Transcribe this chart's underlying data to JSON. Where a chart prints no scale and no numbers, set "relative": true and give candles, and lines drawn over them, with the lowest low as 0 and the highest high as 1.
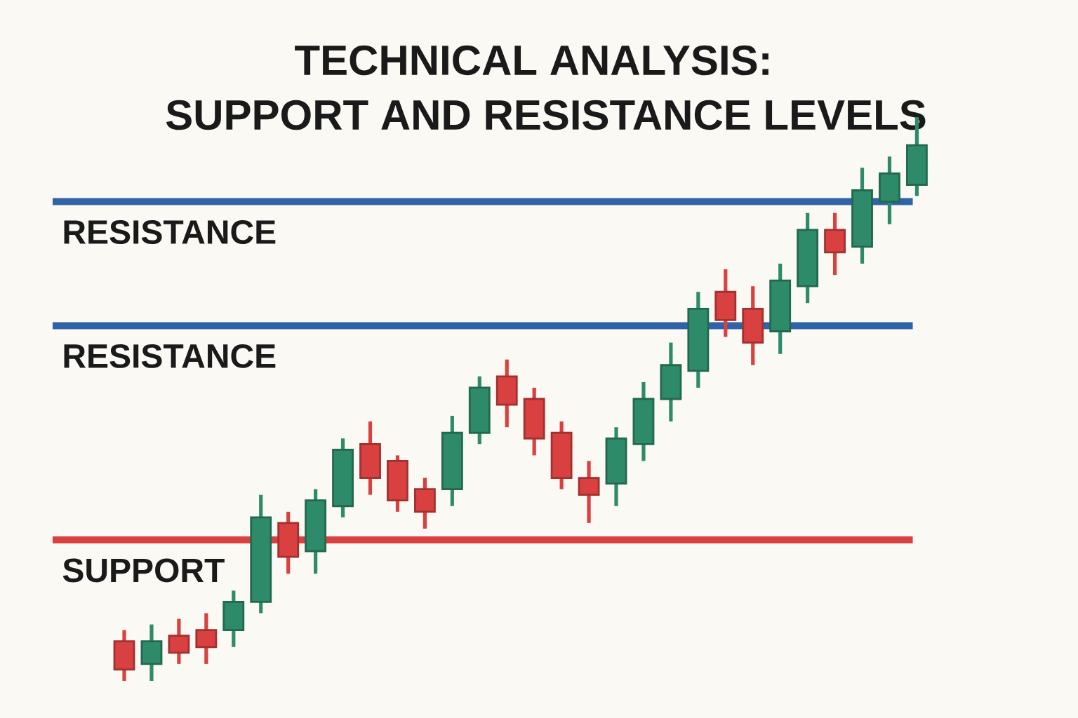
{
  "chart_data": {
    "type": "candlestick",
    "title": "TECHNICAL ANALYSIS:",
    "subtitle": "SUPPORT AND RESISTANCE LEVELS",
    "relative": true,
    "categories": [
      null,
      null,
      null,
      null,
      null,
      null,
      null,
      null,
      null,
      null,
      null,
      null,
      null,
      null,
      null,
      null,
      null,
      null,
      null,
      null,
      null,
      null,
      null,
      null,
      null,
      null,
      null,
      null,
      null,
      null
    ],
    "ohlc": [
      [
        0.07,
        0.09,
        0.0,
        0.02
      ],
      [
        0.03,
        0.1,
        0.0,
        0.07
      ],
      [
        0.08,
        0.11,
        0.03,
        0.05
      ],
      [
        0.09,
        0.12,
        0.03,
        0.06
      ],
      [
        0.09,
        0.16,
        0.06,
        0.14
      ],
      [
        0.14,
        0.33,
        0.12,
        0.29
      ],
      [
        0.28,
        0.3,
        0.19,
        0.22
      ],
      [
        0.23,
        0.34,
        0.19,
        0.32
      ],
      [
        0.31,
        0.43,
        0.29,
        0.41
      ],
      [
        0.42,
        0.46,
        0.33,
        0.36
      ],
      [
        0.39,
        0.4,
        0.3,
        0.32
      ],
      [
        0.34,
        0.36,
        0.27,
        0.3
      ],
      [
        0.34,
        0.47,
        0.31,
        0.44
      ],
      [
        0.44,
        0.54,
        0.42,
        0.52
      ],
      [
        0.54,
        0.57,
        0.45,
        0.49
      ],
      [
        0.5,
        0.52,
        0.4,
        0.43
      ],
      [
        0.44,
        0.46,
        0.34,
        0.36
      ],
      [
        0.36,
        0.39,
        0.28,
        0.33
      ],
      [
        0.35,
        0.45,
        0.31,
        0.43
      ],
      [
        0.42,
        0.53,
        0.39,
        0.5
      ],
      [
        0.5,
        0.6,
        0.46,
        0.56
      ],
      [
        0.55,
        0.69,
        0.52,
        0.66
      ],
      [
        0.69,
        0.73,
        0.61,
        0.64
      ],
      [
        0.66,
        0.7,
        0.56,
        0.6
      ],
      [
        0.62,
        0.74,
        0.58,
        0.71
      ],
      [
        0.7,
        0.83,
        0.67,
        0.8
      ],
      [
        0.8,
        0.83,
        0.72,
        0.76
      ],
      [
        0.77,
        0.91,
        0.74,
        0.87
      ],
      [
        0.85,
        0.93,
        0.81,
        0.9
      ],
      [
        0.88,
        1.0,
        0.86,
        0.95
      ]
    ],
    "colors": [
      "#d94040",
      "#2e8b6a",
      "#d94040",
      "#d94040",
      "#2e8b6a",
      "#2e8b6a",
      "#d94040",
      "#2e8b6a",
      "#2e8b6a",
      "#d94040",
      "#d94040",
      "#d94040",
      "#2e8b6a",
      "#2e8b6a",
      "#d94040",
      "#d94040",
      "#d94040",
      "#d94040",
      "#2e8b6a",
      "#2e8b6a",
      "#2e8b6a",
      "#2e8b6a",
      "#d94040",
      "#d94040",
      "#2e8b6a",
      "#2e8b6a",
      "#d94040",
      "#2e8b6a",
      "#2e8b6a",
      "#2e8b6a"
    ],
    "ref_lines": [
      {
        "axis": "y",
        "value": 0.85,
        "label": "RESISTANCE",
        "color": "#2f62a6"
      },
      {
        "axis": "y",
        "value": 0.63,
        "label": "RESISTANCE",
        "color": "#2f62a6"
      },
      {
        "axis": "y",
        "value": 0.25,
        "label": "SUPPORT",
        "color": "#d94040"
      }
    ]
  }
}
